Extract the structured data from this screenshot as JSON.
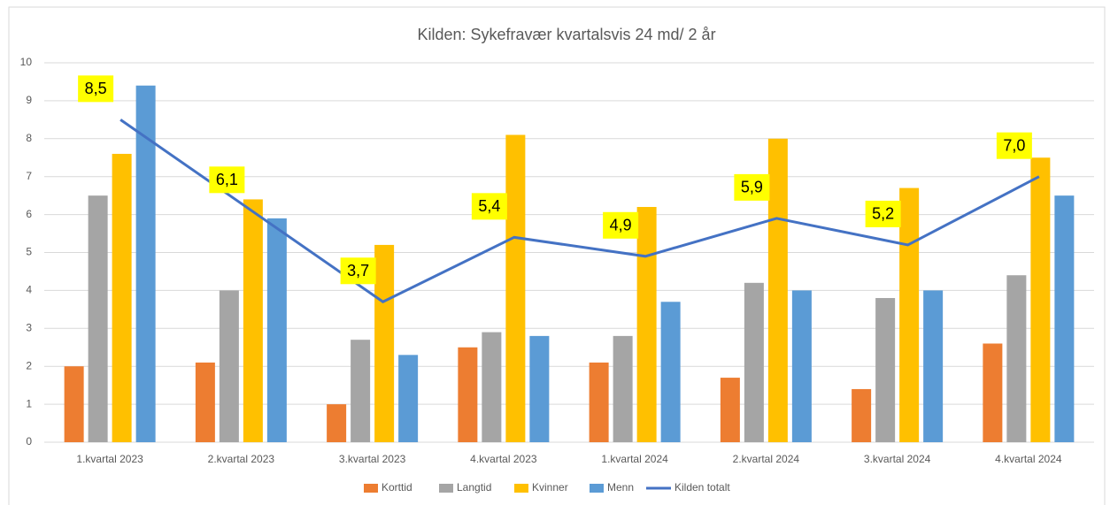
{
  "chart_data": {
    "type": "bar_line",
    "title": "Kilden: Sykefravær kvartalsvis 24 md/ 2 år",
    "categories": [
      "1.kvartal 2023",
      "2.kvartal 2023",
      "3.kvartal 2023",
      "4.kvartal 2023",
      "1.kvartal 2024",
      "2.kvartal 2024",
      "3.kvartal 2024",
      "4.kvartal 2024"
    ],
    "series": [
      {
        "name": "Korttid",
        "color": "#ed7d31",
        "kind": "bar",
        "values": [
          2.0,
          2.1,
          1.0,
          2.5,
          2.1,
          1.7,
          1.4,
          2.6
        ]
      },
      {
        "name": "Langtid",
        "color": "#a5a5a5",
        "kind": "bar",
        "values": [
          6.5,
          4.0,
          2.7,
          2.9,
          2.8,
          4.2,
          3.8,
          4.4
        ]
      },
      {
        "name": "Kvinner",
        "color": "#ffc000",
        "kind": "bar",
        "values": [
          7.6,
          6.4,
          5.2,
          8.1,
          6.2,
          8.0,
          6.7,
          7.5
        ]
      },
      {
        "name": "Menn",
        "color": "#5b9bd5",
        "kind": "bar",
        "values": [
          9.4,
          5.9,
          2.3,
          2.8,
          3.7,
          4.0,
          4.0,
          6.5
        ]
      },
      {
        "name": "Kilden totalt",
        "color": "#4472c4",
        "kind": "line",
        "values": [
          8.5,
          6.1,
          3.7,
          5.4,
          4.9,
          5.9,
          5.2,
          7.0
        ],
        "value_labels": [
          "8,5",
          "6,1",
          "3,7",
          "5,4",
          "4,9",
          "5,9",
          "5,2",
          "7,0"
        ]
      }
    ],
    "ylim": [
      0,
      10
    ],
    "yticks": [
      0,
      1,
      2,
      3,
      4,
      5,
      6,
      7,
      8,
      9,
      10
    ],
    "grid": true,
    "legend": "bottom"
  }
}
